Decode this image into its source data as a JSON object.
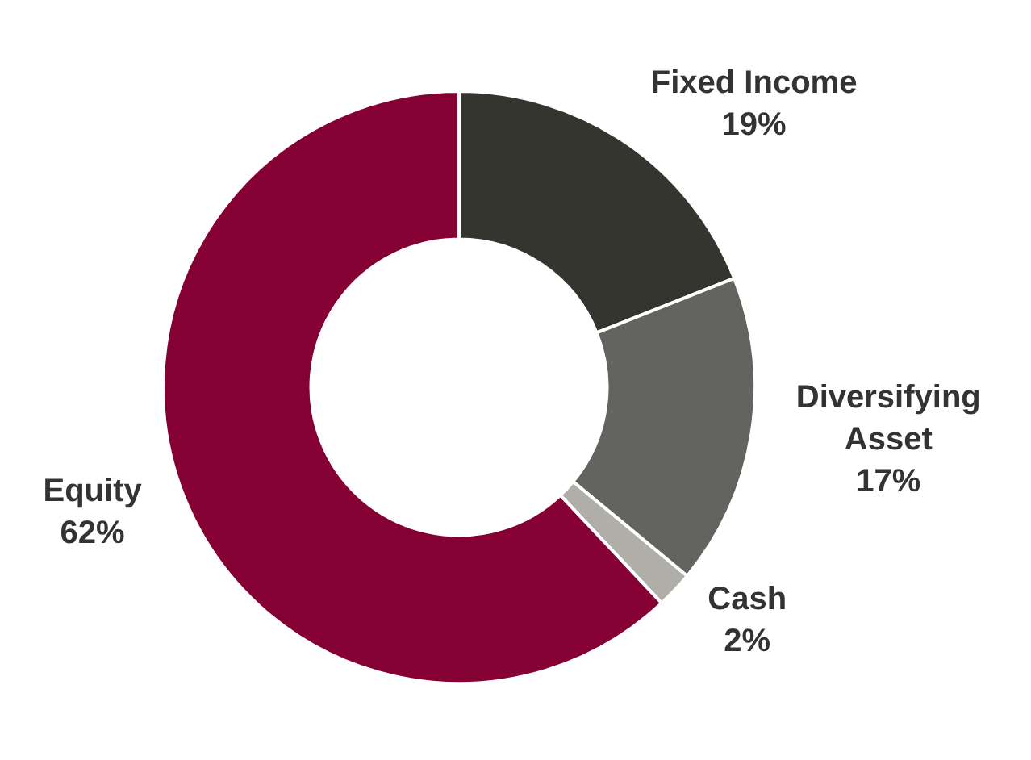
{
  "chart_data": {
    "type": "donut",
    "categories": [
      "Fixed Income",
      "Diversifying Asset",
      "Cash",
      "Equity"
    ],
    "values": [
      19,
      17,
      2,
      62
    ],
    "value_labels": [
      "19%",
      "17%",
      "2%",
      "62%"
    ],
    "colors": [
      "#353530",
      "#636360",
      "#b0aea8",
      "#850033"
    ],
    "legend": false
  }
}
